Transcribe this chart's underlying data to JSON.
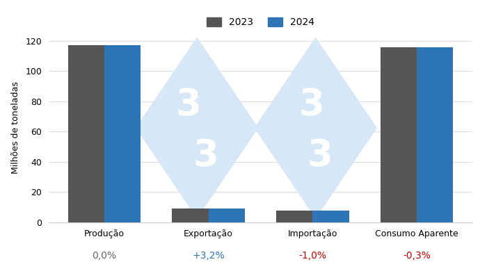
{
  "categories": [
    "Produção",
    "Exportação",
    "Importação",
    "Consumo Aparente"
  ],
  "values_2023": [
    117.0,
    9.0,
    8.0,
    116.0
  ],
  "values_2024": [
    117.0,
    9.3,
    7.9,
    115.7
  ],
  "color_2023": "#555555",
  "color_2024": "#2e75b6",
  "ylabel": "Milhões de toneladas",
  "ylim": [
    0,
    125
  ],
  "yticks": [
    0.0,
    20.0,
    40.0,
    60.0,
    80.0,
    100.0,
    120.0
  ],
  "legend_labels": [
    "2023",
    "2024"
  ],
  "pct_labels": [
    "0,0%",
    "+3,2%",
    "-1,0%",
    "-0,3%"
  ],
  "pct_colors": [
    "#666666",
    "#2e75b6",
    "#cc0000",
    "#cc0000"
  ],
  "background_color": "#ffffff",
  "grid_color": "#dddddd",
  "bar_width": 0.35,
  "watermark_color": "#d6e8f7",
  "watermark_text_color": "#ffffff"
}
